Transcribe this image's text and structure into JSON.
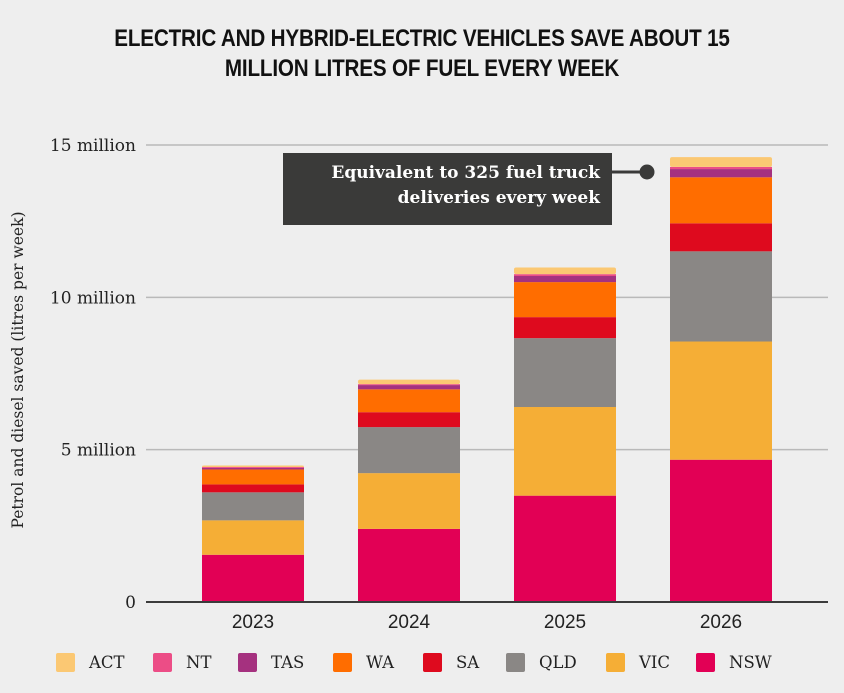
{
  "chart_data": {
    "type": "bar",
    "stacked": true,
    "title": "ELECTRIC AND HYBRID-ELECTRIC VEHICLES SAVE ABOUT 15 MILLION LITRES OF FUEL EVERY WEEK",
    "title_lines": [
      "ELECTRIC AND HYBRID-ELECTRIC VEHICLES SAVE ABOUT 15",
      "MILLION LITRES OF FUEL EVERY WEEK"
    ],
    "xlabel": "",
    "ylabel": "Petrol and diesel saved (litres per week)",
    "units": "million litres per week",
    "ylim": [
      0,
      15
    ],
    "yticks": [
      {
        "value": 0,
        "label": "0"
      },
      {
        "value": 5,
        "label": "5 million"
      },
      {
        "value": 10,
        "label": "10 million"
      },
      {
        "value": 15,
        "label": "15 million"
      }
    ],
    "grid": true,
    "legend_position": "bottom",
    "categories": [
      "2023",
      "2024",
      "2025",
      "2026"
    ],
    "series": [
      {
        "name": "NSW",
        "color": "#e20055",
        "values": [
          1.55,
          2.4,
          3.49,
          4.67
        ]
      },
      {
        "name": "VIC",
        "color": "#f5ae36",
        "values": [
          1.13,
          1.83,
          2.91,
          3.88
        ]
      },
      {
        "name": "QLD",
        "color": "#8a8785",
        "values": [
          0.92,
          1.51,
          2.26,
          2.96
        ]
      },
      {
        "name": "SA",
        "color": "#de0a1e",
        "values": [
          0.26,
          0.49,
          0.69,
          0.92
        ]
      },
      {
        "name": "WA",
        "color": "#ff6d00",
        "values": [
          0.49,
          0.75,
          1.15,
          1.51
        ]
      },
      {
        "name": "TAS",
        "color": "#a5317f",
        "values": [
          0.05,
          0.14,
          0.2,
          0.27
        ]
      },
      {
        "name": "NT",
        "color": "#ec4d86",
        "values": [
          0.03,
          0.03,
          0.06,
          0.07
        ]
      },
      {
        "name": "ACT",
        "color": "#fbc873",
        "values": [
          0.05,
          0.15,
          0.22,
          0.32
        ]
      }
    ],
    "legend_order": [
      "ACT",
      "NT",
      "TAS",
      "WA",
      "SA",
      "QLD",
      "VIC",
      "NSW"
    ],
    "annotation": {
      "lines": [
        "Equivalent to 325 fuel truck",
        "deliveries every week"
      ],
      "target_category": "2026"
    }
  }
}
